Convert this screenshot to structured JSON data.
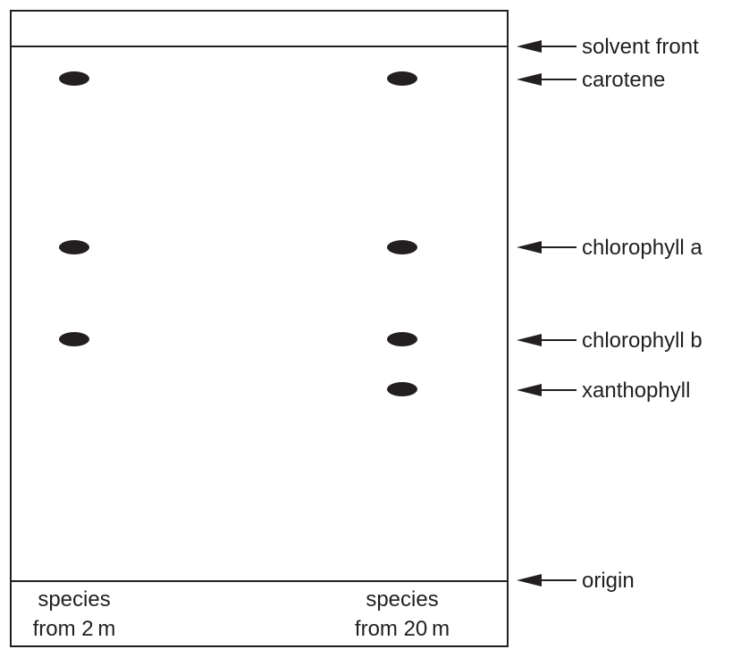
{
  "diagram": {
    "columns": [
      {
        "line1": "species",
        "line2": "from 2 m"
      },
      {
        "line1": "species",
        "line2": "from 20 m"
      }
    ],
    "labels": {
      "solvent_front": "solvent front",
      "carotene": "carotene",
      "chlorophyll_a": "chlorophyll a",
      "chlorophyll_b": "chlorophyll b",
      "xanthophyll": "xanthophyll",
      "origin": "origin"
    },
    "ink_color": "#231f20"
  }
}
